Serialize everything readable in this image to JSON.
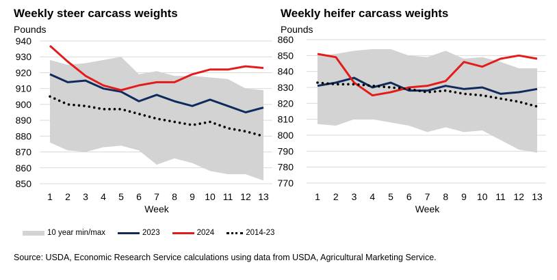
{
  "chart_data": [
    {
      "type": "area+line",
      "title": "Weekly steer carcass weights",
      "ylabel": "Pounds",
      "xlabel": "Week",
      "ylim": [
        850,
        940
      ],
      "yticks": [
        850,
        860,
        870,
        880,
        890,
        900,
        910,
        920,
        930,
        940
      ],
      "x": [
        1,
        2,
        3,
        4,
        5,
        6,
        7,
        8,
        9,
        10,
        11,
        12,
        13
      ],
      "grid": true,
      "band": {
        "name": "10 year min/max",
        "color": "#d3d3d3",
        "max": [
          928,
          925,
          926,
          928,
          930,
          919,
          921,
          918,
          918,
          917,
          916,
          910,
          909
        ],
        "min": [
          876,
          871,
          870,
          873,
          874,
          871,
          862,
          866,
          863,
          858,
          856,
          856,
          852
        ]
      },
      "series": [
        {
          "name": "2023",
          "color": "#0f2a5c",
          "style": "solid",
          "values": [
            919,
            914,
            915,
            910,
            908,
            902,
            906,
            902,
            899,
            903,
            899,
            895,
            898
          ]
        },
        {
          "name": "2024",
          "color": "#e31b1b",
          "style": "solid",
          "values": [
            937,
            927,
            918,
            912,
            909,
            912,
            914,
            914,
            919,
            922,
            922,
            924,
            923
          ]
        },
        {
          "name": "2014-23",
          "color": "#000000",
          "style": "dotted",
          "values": [
            905,
            900,
            899,
            897,
            897,
            894,
            891,
            889,
            887,
            889,
            885,
            883,
            880
          ]
        }
      ]
    },
    {
      "type": "area+line",
      "title": "Weekly heifer carcass weights",
      "ylabel": "Pounds",
      "xlabel": "Week",
      "ylim": [
        770,
        860
      ],
      "yticks": [
        770,
        780,
        790,
        800,
        810,
        820,
        830,
        840,
        850,
        860
      ],
      "x": [
        1,
        2,
        3,
        4,
        5,
        6,
        7,
        8,
        9,
        10,
        11,
        12,
        13
      ],
      "grid": true,
      "band": {
        "name": "10 year min/max",
        "color": "#d3d3d3",
        "max": [
          850,
          851,
          853,
          854,
          854,
          850,
          849,
          853,
          848,
          849,
          846,
          842,
          842
        ],
        "min": [
          807,
          806,
          810,
          810,
          808,
          806,
          802,
          805,
          802,
          803,
          797,
          791,
          789
        ]
      },
      "series": [
        {
          "name": "2023",
          "color": "#0f2a5c",
          "style": "solid",
          "values": [
            831,
            833,
            836,
            830,
            833,
            828,
            828,
            831,
            829,
            830,
            826,
            827,
            829
          ]
        },
        {
          "name": "2024",
          "color": "#e31b1b",
          "style": "solid",
          "values": [
            851,
            849,
            833,
            825,
            827,
            830,
            831,
            834,
            846,
            843,
            848,
            850,
            848
          ]
        },
        {
          "name": "2014-23",
          "color": "#000000",
          "style": "dotted",
          "values": [
            833,
            832,
            832,
            831,
            830,
            829,
            827,
            828,
            826,
            825,
            823,
            821,
            818
          ]
        }
      ]
    }
  ],
  "legend": [
    "10 year min/max",
    "2023",
    "2024",
    "2014-23"
  ],
  "source": "Source: USDA, Economic Research Service calculations using data from USDA, Agricultural Marketing Service."
}
